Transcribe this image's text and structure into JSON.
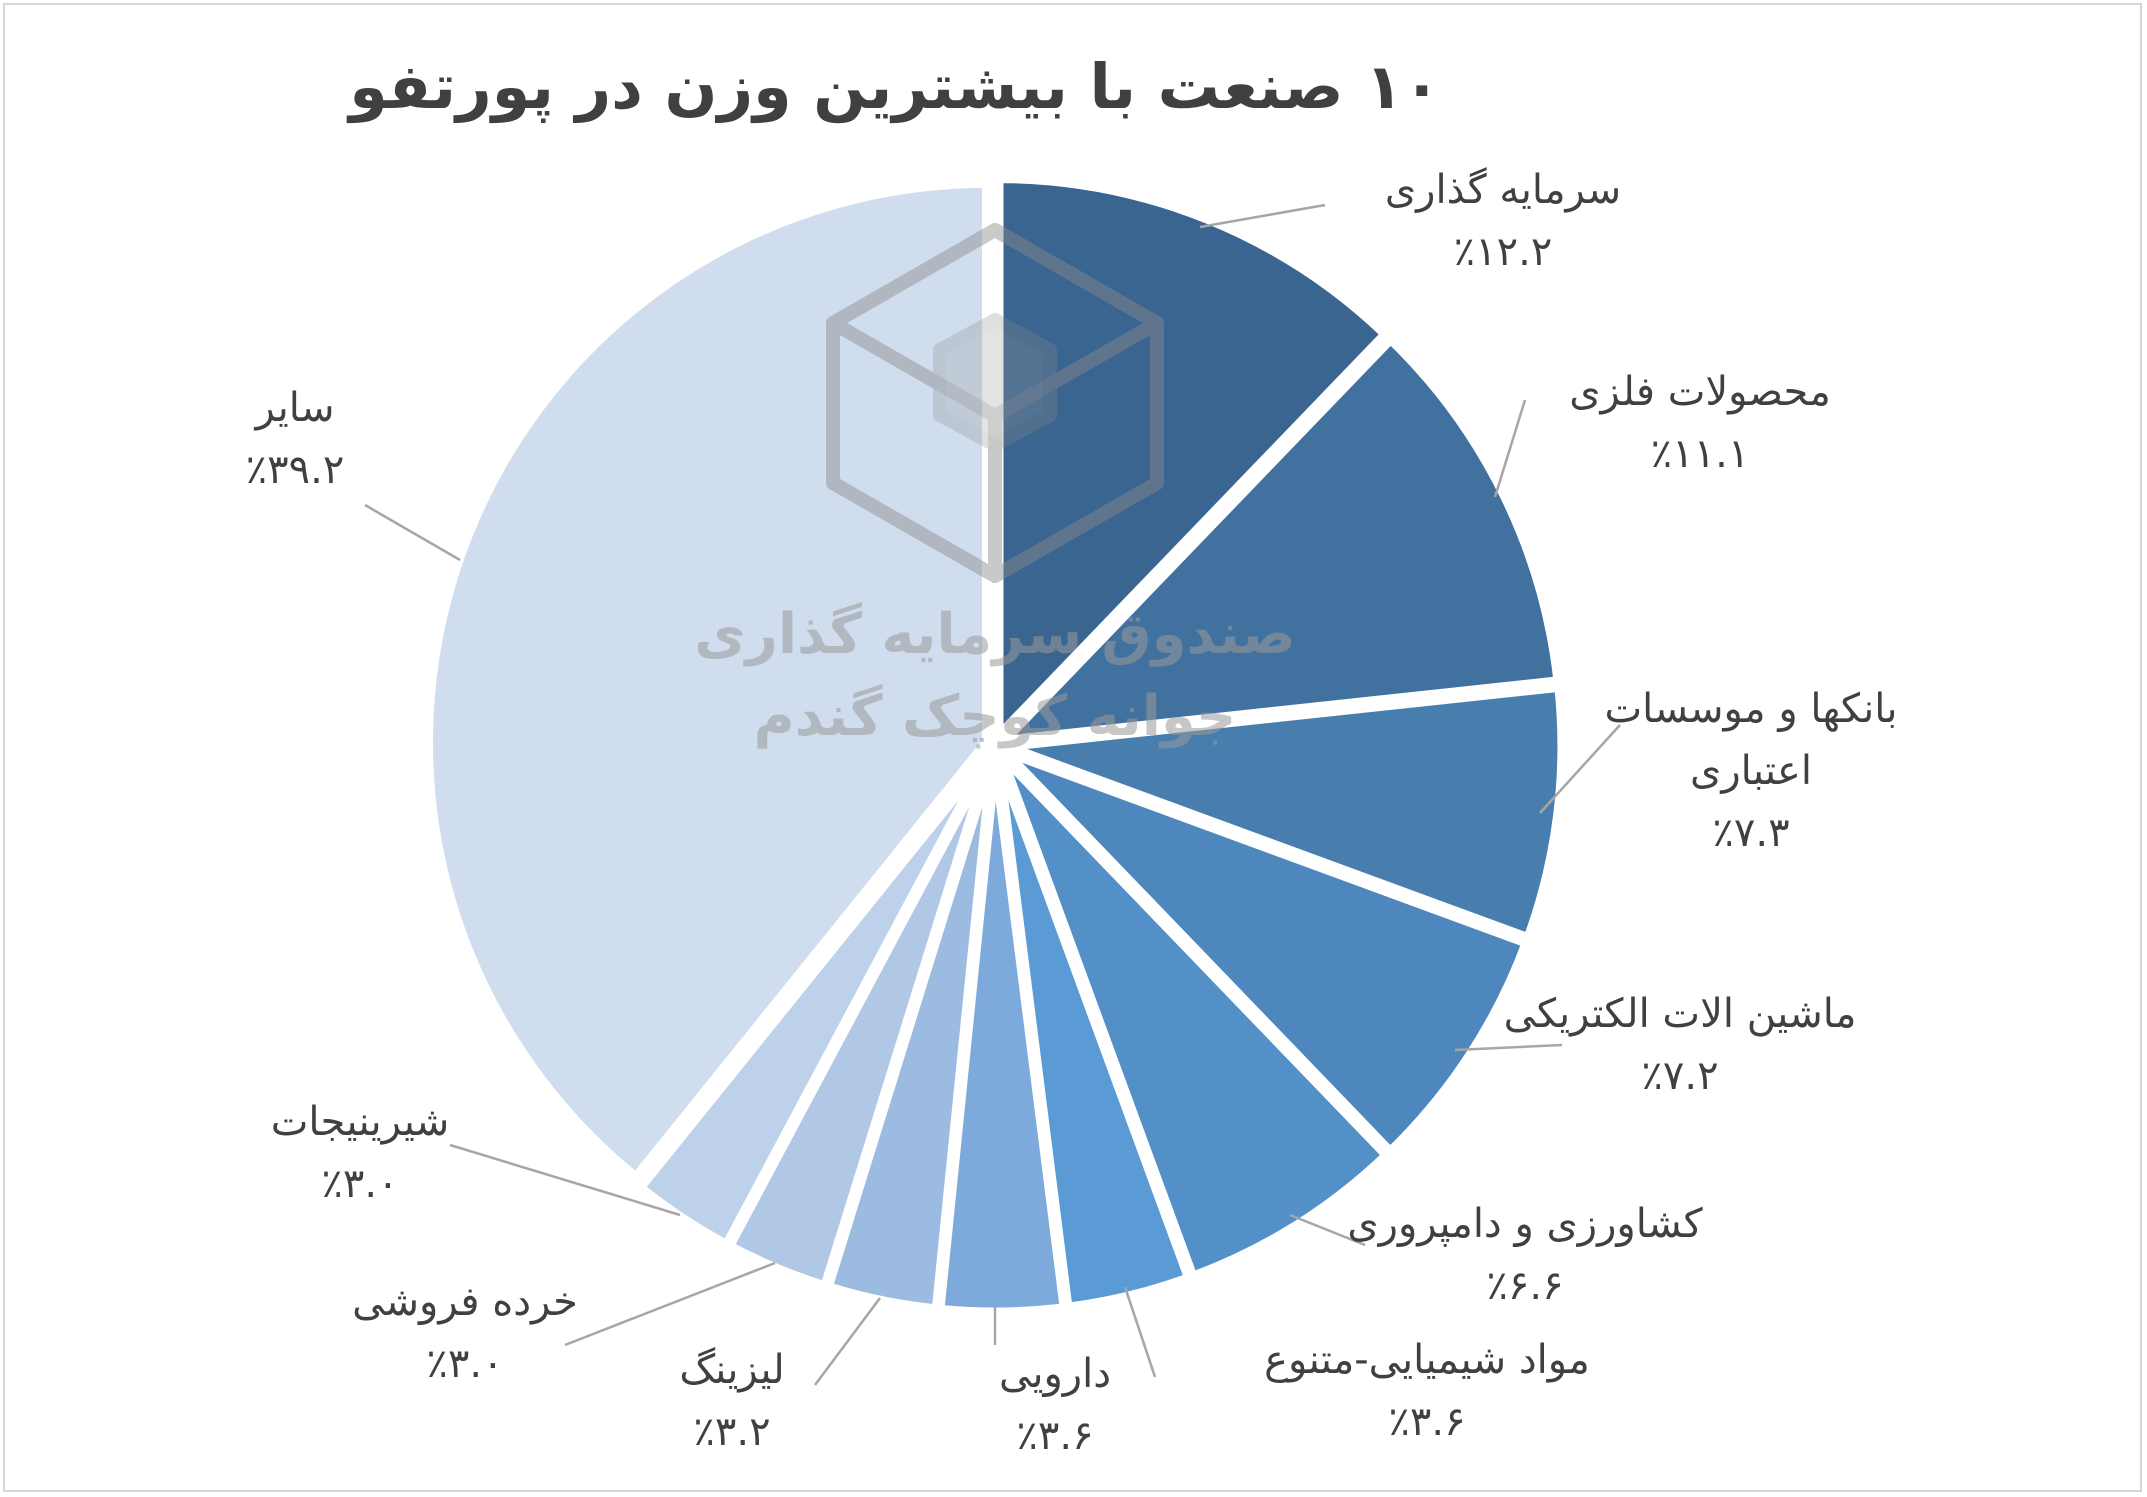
{
  "chart_data": {
    "type": "pie",
    "title": "۱۰ صنعت با بیشترین وزن در پورتفو",
    "slices": [
      {
        "label": "سرمایه گذاری",
        "value_text": "٪۱۲.۲",
        "value": 12.2,
        "color": "#3b6591"
      },
      {
        "label": "محصولات فلزی",
        "value_text": "٪۱۱.۱",
        "value": 11.1,
        "color": "#41719f"
      },
      {
        "label": "بانکها و موسسات اعتباری",
        "label_lines": [
          "بانکها و موسسات",
          "اعتباری"
        ],
        "value_text": "٪۷.۳",
        "value": 7.3,
        "color": "#477ead"
      },
      {
        "label": "ماشین الات الکتریکی",
        "value_text": "٪۷.۲",
        "value": 7.2,
        "color": "#4d87bd"
      },
      {
        "label": "کشاورزی و دامپروری",
        "value_text": "٪۶.۶",
        "value": 6.6,
        "color": "#5390c8"
      },
      {
        "label": "مواد شیمیایی-متنوع",
        "value_text": "٪۳.۶",
        "value": 3.6,
        "color": "#5b9bd5"
      },
      {
        "label": "دارویی",
        "value_text": "٪۳.۶",
        "value": 3.6,
        "color": "#7daadb"
      },
      {
        "label": "لیزینگ",
        "value_text": "٪۳.۲",
        "value": 3.2,
        "color": "#9bbbe0"
      },
      {
        "label": "خرده فروشی",
        "value_text": "٪۳.۰",
        "value": 3.0,
        "color": "#b0c8e6"
      },
      {
        "label": "شیرینیجات",
        "value_text": "٪۳.۰",
        "value": 3.0,
        "color": "#bdd1ea"
      },
      {
        "label": "سایر",
        "value_text": "٪۳۹.۲",
        "value": 39.2,
        "color": "#d0ddee"
      }
    ],
    "legend": "none",
    "data_labels": "outside-with-leader-lines"
  },
  "watermark": {
    "line1": "صندوق سرمایه گذاری",
    "line2": "جوانه کوچک گندم"
  }
}
